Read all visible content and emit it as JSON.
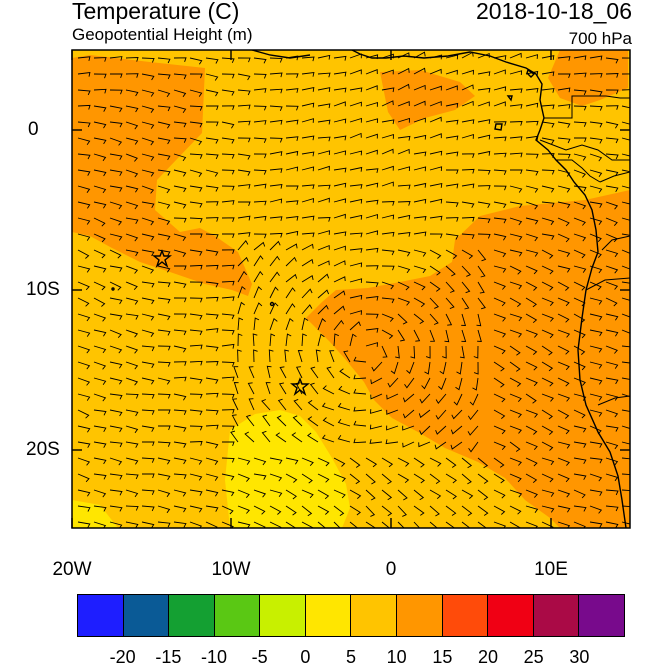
{
  "header": {
    "title": "Temperature (C)",
    "subtitle": "Geopotential Height (m)",
    "datetime": "2018-10-18_06",
    "level": "700 hPa"
  },
  "axes": {
    "x_labels": [
      "20W",
      "10W",
      "0",
      "10E"
    ],
    "y_labels": [
      "0",
      "10S",
      "20S"
    ]
  },
  "colorbar": {
    "colors": [
      "#1e1eff",
      "#0a5a96",
      "#14a032",
      "#5ac814",
      "#c8f000",
      "#ffe600",
      "#ffc400",
      "#ff9600",
      "#ff4b0a",
      "#f00014",
      "#aa0a46",
      "#780a8c"
    ],
    "labels": [
      "-20",
      "-15",
      "-10",
      "-5",
      "0",
      "5",
      "10",
      "15",
      "20",
      "25",
      "30"
    ]
  },
  "map": {
    "markers": [
      {
        "lon": -14.3,
        "lat": -8.0
      },
      {
        "lon": -5.8,
        "lat": -16.0
      }
    ]
  }
}
